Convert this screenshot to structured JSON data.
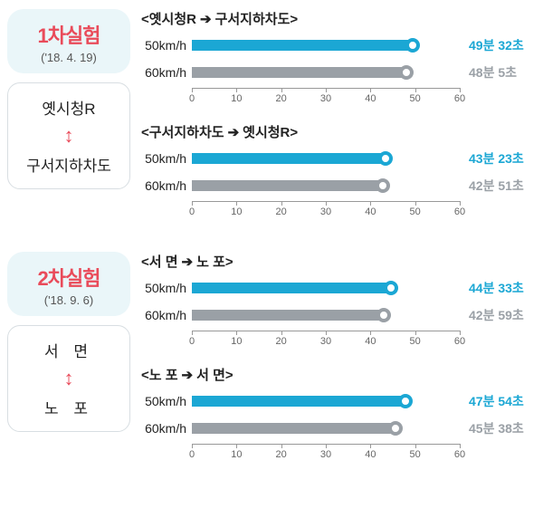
{
  "axis": {
    "min": 0,
    "max": 60,
    "ticks": [
      0,
      10,
      20,
      30,
      40,
      50,
      60
    ]
  },
  "colors": {
    "primary": "#1ba7d4",
    "secondary": "#9aa0a6",
    "accent": "#e94b5a",
    "card_bg": "#eaf6f9",
    "marker_border_primary": "#1ba7d4",
    "marker_border_secondary": "#9aa0a6"
  },
  "experiments": [
    {
      "title": "1차실험",
      "date": "('18. 4. 19)",
      "route_a": "옛시청R",
      "route_b": "구서지하차도",
      "route_a_ls": "0px",
      "route_b_ls": "0px",
      "charts": [
        {
          "title_a": "옛시청R",
          "title_b": "구서지하차도",
          "bars": [
            {
              "label": "50km/h",
              "value": 49.53,
              "display": "49분 32초",
              "color": "#1ba7d4"
            },
            {
              "label": "60km/h",
              "value": 48.08,
              "display": "48분 5초",
              "color": "#9aa0a6"
            }
          ]
        },
        {
          "title_a": "구서지하차도",
          "title_b": "옛시청R",
          "bars": [
            {
              "label": "50km/h",
              "value": 43.38,
              "display": "43분 23초",
              "color": "#1ba7d4"
            },
            {
              "label": "60km/h",
              "value": 42.85,
              "display": "42분 51초",
              "color": "#9aa0a6"
            }
          ]
        }
      ]
    },
    {
      "title": "2차실험",
      "date": "('18. 9. 6)",
      "route_a": "서  면",
      "route_b": "노  포",
      "route_a_ls": "6px",
      "route_b_ls": "6px",
      "charts": [
        {
          "title_a": "서  면",
          "title_b": "노  포",
          "bars": [
            {
              "label": "50km/h",
              "value": 44.55,
              "display": "44분 33초",
              "color": "#1ba7d4"
            },
            {
              "label": "60km/h",
              "value": 42.98,
              "display": "42분 59초",
              "color": "#9aa0a6"
            }
          ]
        },
        {
          "title_a": "노  포",
          "title_b": "서  면",
          "bars": [
            {
              "label": "50km/h",
              "value": 47.9,
              "display": "47분 54초",
              "color": "#1ba7d4"
            },
            {
              "label": "60km/h",
              "value": 45.63,
              "display": "45분 38초",
              "color": "#9aa0a6"
            }
          ]
        }
      ]
    }
  ]
}
